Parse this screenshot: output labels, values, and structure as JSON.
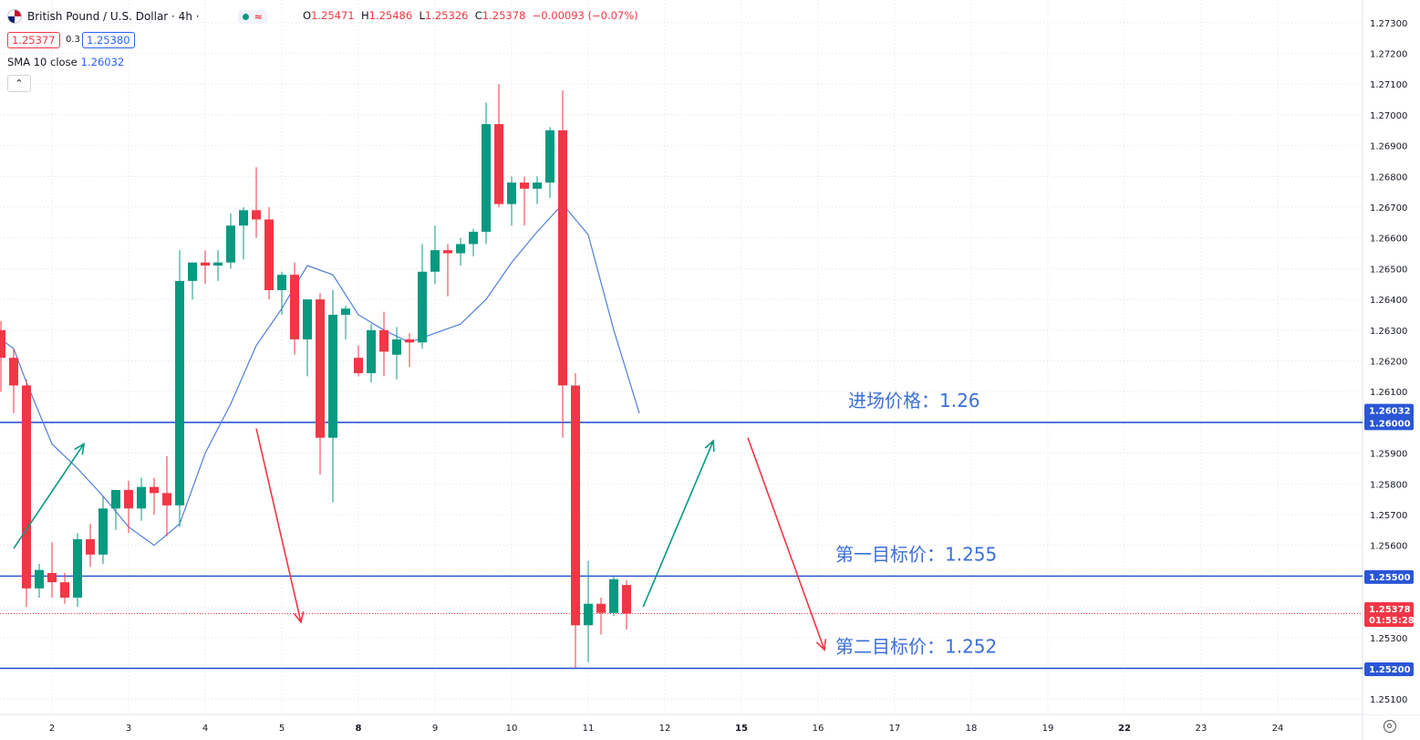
{
  "header": {
    "symbol_title": "British Pound / U.S. Dollar · 4h ·",
    "ohlc": {
      "o_label": "O",
      "o": "1.25471",
      "h_label": "H",
      "h": "1.25486",
      "l_label": "L",
      "l": "1.25326",
      "c_label": "C",
      "c": "1.25378",
      "change": "−0.00093 (−0.07%)"
    },
    "bid": "1.25377",
    "spread": "0.3",
    "ask": "1.25380",
    "sma_label": "SMA 10 close",
    "sma_value": "1.26032",
    "collapse_icon": "chevron-up-icon"
  },
  "colors": {
    "up": "#089981",
    "down": "#f23645",
    "sma": "#4f7fd9",
    "hline": "#2a56d6",
    "annotation": "#3b6fd8",
    "grid": "#e0e3eb"
  },
  "chart_data": {
    "type": "candlestick",
    "timeframe": "4h",
    "y_axis": {
      "min": 1.2505,
      "max": 1.2735,
      "ticks": [
        "1.25100",
        "1.25200",
        "1.25300",
        "1.25400",
        "1.25500",
        "1.25600",
        "1.25700",
        "1.25800",
        "1.25900",
        "1.26000",
        "1.26100",
        "1.26200",
        "1.26300",
        "1.26400",
        "1.26500",
        "1.26600",
        "1.26700",
        "1.26800",
        "1.26900",
        "1.27000",
        "1.27100",
        "1.27200",
        "1.27300"
      ]
    },
    "x_axis": {
      "labels": [
        {
          "text": "2",
          "slot": 4
        },
        {
          "text": "3",
          "slot": 10
        },
        {
          "text": "4",
          "slot": 16
        },
        {
          "text": "5",
          "slot": 22
        },
        {
          "text": "8",
          "slot": 28
        },
        {
          "text": "9",
          "slot": 34
        },
        {
          "text": "10",
          "slot": 40
        },
        {
          "text": "11",
          "slot": 46
        },
        {
          "text": "12",
          "slot": 52
        },
        {
          "text": "15",
          "slot": 58
        },
        {
          "text": "16",
          "slot": 64
        },
        {
          "text": "17",
          "slot": 70
        },
        {
          "text": "18",
          "slot": 76
        },
        {
          "text": "19",
          "slot": 82
        },
        {
          "text": "22",
          "slot": 88
        },
        {
          "text": "23",
          "slot": 94
        },
        {
          "text": "24",
          "slot": 100
        }
      ]
    },
    "candles": [
      [
        1.263,
        1.2633,
        1.261,
        1.2621
      ],
      [
        1.2621,
        1.2624,
        1.2603,
        1.2612
      ],
      [
        1.2612,
        1.2614,
        1.254,
        1.2546
      ],
      [
        1.2546,
        1.2554,
        1.2543,
        1.2552
      ],
      [
        1.2551,
        1.2561,
        1.2543,
        1.2548
      ],
      [
        1.2548,
        1.2551,
        1.2541,
        1.2543
      ],
      [
        1.2543,
        1.2564,
        1.254,
        1.2562
      ],
      [
        1.2562,
        1.2567,
        1.2553,
        1.2557
      ],
      [
        1.2557,
        1.2576,
        1.2554,
        1.2572
      ],
      [
        1.2572,
        1.2578,
        1.2565,
        1.2578
      ],
      [
        1.2578,
        1.2581,
        1.2564,
        1.2572
      ],
      [
        1.2572,
        1.2582,
        1.2568,
        1.2579
      ],
      [
        1.2579,
        1.2582,
        1.257,
        1.2577
      ],
      [
        1.2577,
        1.2589,
        1.2563,
        1.2573
      ],
      [
        1.2573,
        1.2656,
        1.2566,
        1.2646
      ],
      [
        1.2646,
        1.2652,
        1.264,
        1.2652
      ],
      [
        1.2652,
        1.2656,
        1.2645,
        1.2651
      ],
      [
        1.2651,
        1.2656,
        1.2646,
        1.2652
      ],
      [
        1.2652,
        1.2668,
        1.265,
        1.2664
      ],
      [
        1.2664,
        1.267,
        1.2653,
        1.2669
      ],
      [
        1.2669,
        1.2683,
        1.266,
        1.2666
      ],
      [
        1.2666,
        1.267,
        1.264,
        1.2643
      ],
      [
        1.2643,
        1.2649,
        1.2635,
        1.2648
      ],
      [
        1.2648,
        1.2652,
        1.2622,
        1.2627
      ],
      [
        1.2627,
        1.264,
        1.2615,
        1.264
      ],
      [
        1.264,
        1.2642,
        1.2583,
        1.2595
      ],
      [
        1.2595,
        1.2643,
        1.2574,
        1.2635
      ],
      [
        1.2635,
        1.2638,
        1.2627,
        1.2637
      ],
      [
        1.2621,
        1.2625,
        1.2615,
        1.2616
      ],
      [
        1.2616,
        1.2632,
        1.2613,
        1.263
      ],
      [
        1.263,
        1.2636,
        1.2615,
        1.2623
      ],
      [
        1.2622,
        1.2631,
        1.2614,
        1.2627
      ],
      [
        1.2627,
        1.2629,
        1.2618,
        1.2626
      ],
      [
        1.2626,
        1.2658,
        1.2624,
        1.2649
      ],
      [
        1.2649,
        1.2664,
        1.2645,
        1.2656
      ],
      [
        1.2656,
        1.2658,
        1.2641,
        1.2655
      ],
      [
        1.2655,
        1.266,
        1.2651,
        1.2658
      ],
      [
        1.2658,
        1.2663,
        1.2654,
        1.2662
      ],
      [
        1.2662,
        1.2704,
        1.2658,
        1.2697
      ],
      [
        1.2697,
        1.271,
        1.267,
        1.2671
      ],
      [
        1.2671,
        1.268,
        1.2664,
        1.2678
      ],
      [
        1.2678,
        1.268,
        1.2664,
        1.2676
      ],
      [
        1.2676,
        1.268,
        1.2671,
        1.2678
      ],
      [
        1.2678,
        1.2696,
        1.2673,
        1.2695
      ],
      [
        1.2695,
        1.2708,
        1.2595,
        1.2612
      ],
      [
        1.2612,
        1.2616,
        1.252,
        1.2534
      ],
      [
        1.2534,
        1.2555,
        1.2522,
        1.2541
      ],
      [
        1.2541,
        1.2543,
        1.2531,
        1.2538
      ],
      [
        1.2538,
        1.255,
        1.2537,
        1.2549
      ],
      [
        1.25471,
        1.25486,
        1.25326,
        1.25378
      ]
    ],
    "sma10": [
      [
        0,
        1.2627
      ],
      [
        1,
        1.2624
      ],
      [
        2,
        1.2613
      ],
      [
        4,
        1.2593
      ],
      [
        6,
        1.2585
      ],
      [
        8,
        1.2576
      ],
      [
        10,
        1.2566
      ],
      [
        12,
        1.256
      ],
      [
        14,
        1.2567
      ],
      [
        16,
        1.259
      ],
      [
        18,
        1.2606
      ],
      [
        20,
        1.2625
      ],
      [
        22,
        1.2637
      ],
      [
        24,
        1.2651
      ],
      [
        26,
        1.2648
      ],
      [
        28,
        1.2635
      ],
      [
        30,
        1.263
      ],
      [
        32,
        1.2626
      ],
      [
        34,
        1.2629
      ],
      [
        36,
        1.2632
      ],
      [
        38,
        1.264
      ],
      [
        40,
        1.2652
      ],
      [
        42,
        1.2662
      ],
      [
        44,
        1.2671
      ],
      [
        46,
        1.2661
      ],
      [
        48,
        1.263
      ],
      [
        50,
        1.2603
      ]
    ],
    "horizontal_lines": [
      {
        "price": 1.26,
        "label": "进场价格：1.26",
        "axis_label": "1.26000"
      },
      {
        "price": 1.255,
        "label": "第一目标价：1.255",
        "axis_label": "1.25500"
      },
      {
        "price": 1.252,
        "label": "第二目标价：1.252",
        "axis_label": "1.25200"
      }
    ],
    "price_tags": [
      {
        "text": "1.26032",
        "price": 1.26032,
        "kind": "sma"
      },
      {
        "text": "1.25378",
        "price": 1.25378,
        "kind": "last",
        "countdown": "01:55:28"
      }
    ],
    "arrows": [
      {
        "color": "up",
        "from": [
          1,
          1.2559
        ],
        "to": [
          6.5,
          1.2593
        ]
      },
      {
        "color": "down",
        "from": [
          20,
          1.2598
        ],
        "to": [
          23.5,
          1.2535
        ]
      },
      {
        "color": "up",
        "from": [
          50.3,
          1.254
        ],
        "to": [
          55.8,
          1.2594
        ]
      },
      {
        "color": "down",
        "from": [
          58.5,
          1.2595
        ],
        "to": [
          64.5,
          1.2526
        ]
      }
    ]
  }
}
